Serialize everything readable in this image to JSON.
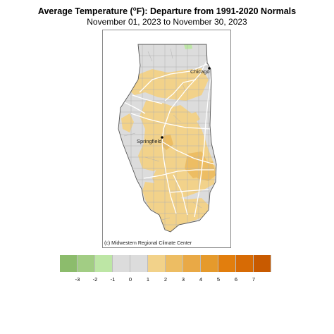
{
  "header": {
    "title_pre": "Average Temperature (",
    "title_sup": "o",
    "title_post": "F): Departure from 1991-2020 Normals",
    "subtitle": "November 01, 2023 to November 30, 2023"
  },
  "map": {
    "credit": "(c) Midwestern Regional Climate Center",
    "cities": [
      {
        "name": "Chicago"
      },
      {
        "name": "Springfield"
      }
    ],
    "colors": {
      "land_neutral": "#dcdcdc",
      "county_lines": "#b0b0b0",
      "roads": "#ffffff",
      "state_outline": "#555555"
    }
  },
  "legend": {
    "colors": [
      "#8cbc6c",
      "#a2cd84",
      "#bde6a5",
      "#dcdcdc",
      "#dcdcdc",
      "#f2d28a",
      "#edbd63",
      "#e9a946",
      "#e59a2c",
      "#e27e0d",
      "#d76b05",
      "#c85a00"
    ],
    "ticks": [
      "-3",
      "-2",
      "-1",
      "0",
      "1",
      "2",
      "3",
      "4",
      "5",
      "6",
      "7"
    ]
  }
}
